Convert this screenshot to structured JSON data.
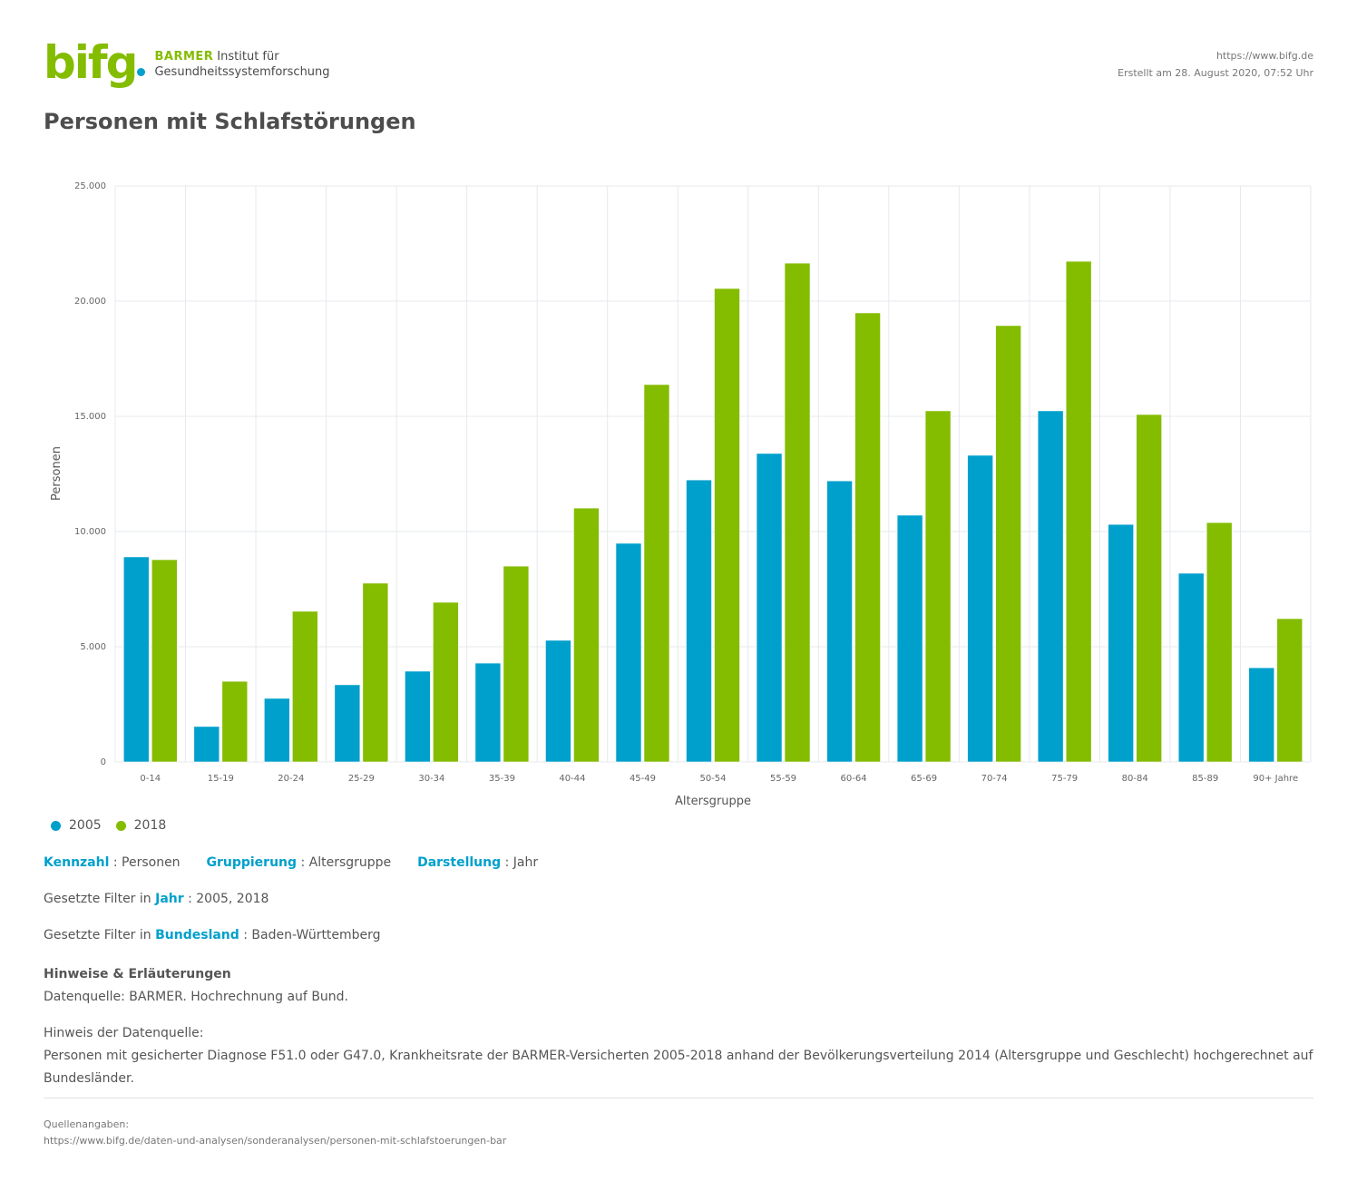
{
  "header": {
    "logo_mark": "bifg",
    "logo_brand": "BARMER",
    "logo_line1": "Institut für",
    "logo_line2": "Gesundheitssystemforschung",
    "url": "https://www.bifg.de",
    "created": "Erstellt am 28. August 2020, 07:52 Uhr"
  },
  "title": "Personen mit Schlafstörungen",
  "colors": {
    "series_2005": "#00a0cc",
    "series_2018": "#84bc00",
    "accent": "#00a0cc"
  },
  "chart_data": {
    "type": "bar",
    "title": "Personen mit Schlafstörungen",
    "xlabel": "Altersgruppe",
    "ylabel": "Personen",
    "ylim": [
      0,
      25000
    ],
    "yticks": [
      0,
      5000,
      10000,
      15000,
      20000,
      25000
    ],
    "ytick_labels": [
      "0",
      "5.000",
      "10.000",
      "15.000",
      "20.000",
      "25.000"
    ],
    "grid": true,
    "legend_position": "bottom-left",
    "categories": [
      "0-14",
      "15-19",
      "20-24",
      "25-29",
      "30-34",
      "35-39",
      "40-44",
      "45-49",
      "50-54",
      "55-59",
      "60-64",
      "65-69",
      "70-74",
      "75-79",
      "80-84",
      "85-89",
      "90+ Jahre"
    ],
    "series": [
      {
        "name": "2005",
        "color": "#00a0cc",
        "values": [
          8900,
          1540,
          2760,
          3350,
          3940,
          4290,
          5280,
          9490,
          12240,
          13390,
          12200,
          10710,
          13310,
          15240,
          10310,
          8190,
          4090
        ]
      },
      {
        "name": "2018",
        "color": "#84bc00",
        "values": [
          8780,
          3500,
          6540,
          7760,
          6930,
          8500,
          11020,
          16380,
          20550,
          21650,
          19490,
          15240,
          18940,
          21730,
          15080,
          10390,
          6220
        ]
      }
    ]
  },
  "info": {
    "kennzahl_key": "Kennzahl",
    "kennzahl_val": " : Personen",
    "gruppierung_key": "Gruppierung",
    "gruppierung_val": " : Altersgruppe",
    "darstellung_key": "Darstellung",
    "darstellung_val": " : Jahr",
    "filter_prefix": "Gesetzte Filter in ",
    "filter_jahr_key": "Jahr",
    "filter_jahr_val": " : 2005, 2018",
    "filter_land_key": "Bundesland",
    "filter_land_val": " : Baden-Württemberg"
  },
  "notes": {
    "title": "Hinweise & Erläuterungen",
    "source": "Datenquelle: BARMER. Hochrechnung auf Bund.",
    "hint_title": "Hinweis der Datenquelle:",
    "hint_text": "Personen mit gesicherter Diagnose F51.0 oder G47.0, Krankheitsrate der BARMER-Versicherten 2005-2018 anhand der Bevölkerungsverteilung 2014 (Altersgruppe und Geschlecht) hochgerechnet auf Bundesländer."
  },
  "footer": {
    "label": "Quellenangaben:",
    "url": "https://www.bifg.de/daten-und-analysen/sonderanalysen/personen-mit-schlafstoerungen-bar"
  }
}
